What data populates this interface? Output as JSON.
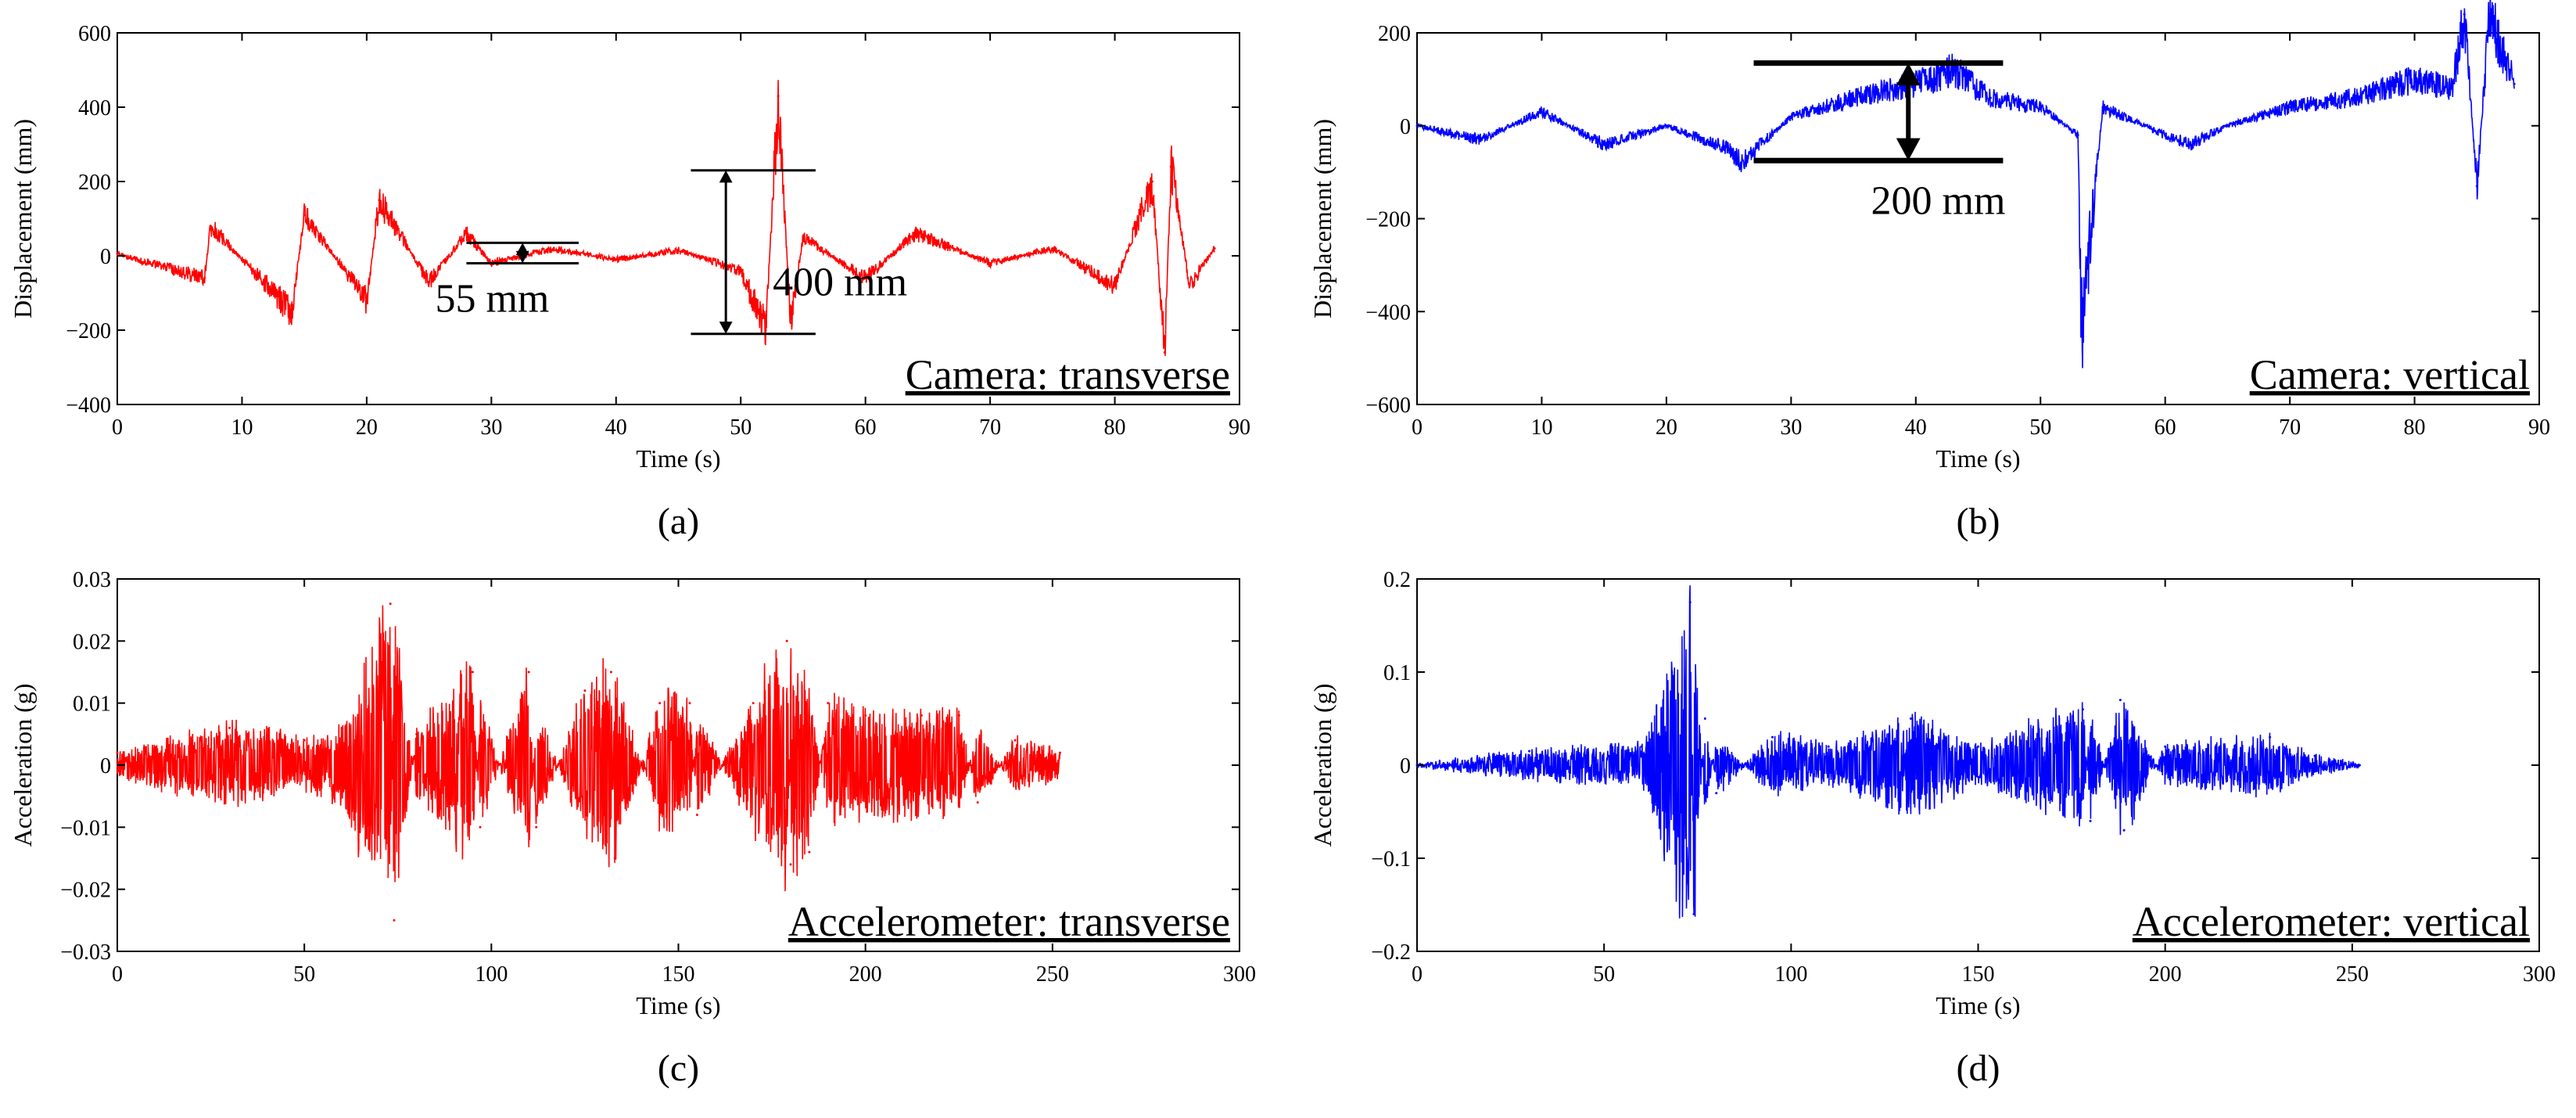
{
  "colors": {
    "red": "#ff0000",
    "blue": "#0000ff",
    "axis": "#000000"
  },
  "chart_data": [
    {
      "type": "line",
      "panel_label": "(a)",
      "title": "Camera: transverse",
      "xlabel": "Time (s)",
      "ylabel": "Displacement (mm)",
      "xlim": [
        0,
        90
      ],
      "ylim": [
        -400,
        600
      ],
      "xticks": [
        0,
        10,
        20,
        30,
        40,
        50,
        60,
        70,
        80,
        90
      ],
      "yticks": [
        -400,
        -200,
        0,
        200,
        400,
        600
      ],
      "color": "#ff0000",
      "grid": false,
      "series": [
        {
          "points": [
            [
              0,
              5
            ],
            [
              7,
              -60
            ],
            [
              7.5,
              80
            ],
            [
              14,
              -150
            ],
            [
              15,
              110
            ],
            [
              20,
              -120
            ],
            [
              21,
              150
            ],
            [
              25,
              -70
            ],
            [
              28,
              60
            ],
            [
              30,
              -20
            ],
            [
              35,
              20
            ],
            [
              40,
              -10
            ],
            [
              45,
              15
            ],
            [
              50,
              -40
            ],
            [
              52,
              -200
            ],
            [
              53,
              430
            ],
            [
              54,
              -180
            ],
            [
              55,
              50
            ],
            [
              60,
              -60
            ],
            [
              64,
              60
            ],
            [
              70,
              -20
            ],
            [
              75,
              20
            ],
            [
              80,
              -80
            ],
            [
              83,
              200
            ],
            [
              84,
              -260
            ],
            [
              84.5,
              240
            ],
            [
              86,
              -80
            ],
            [
              88,
              20
            ]
          ]
        }
      ],
      "annotations": [
        {
          "text": "55 mm",
          "span": [
            -20,
            35
          ],
          "x": [
            28,
            37
          ]
        },
        {
          "text": "400 mm",
          "span": [
            -210,
            230
          ],
          "x": [
            46,
            56
          ]
        }
      ]
    },
    {
      "type": "line",
      "panel_label": "(b)",
      "title": "Camera: vertical",
      "xlabel": "Time (s)",
      "ylabel": "Displacement (mm)",
      "xlim": [
        0,
        90
      ],
      "ylim": [
        -600,
        200
      ],
      "xticks": [
        0,
        10,
        20,
        30,
        40,
        50,
        60,
        70,
        80,
        90
      ],
      "yticks": [
        -600,
        -400,
        -200,
        0,
        200
      ],
      "color": "#0000ff",
      "grid": false,
      "series": [
        {
          "points": [
            [
              0,
              0
            ],
            [
              5,
              -30
            ],
            [
              10,
              30
            ],
            [
              15,
              -40
            ],
            [
              20,
              0
            ],
            [
              25,
              -50
            ],
            [
              26,
              -80
            ],
            [
              30,
              20
            ],
            [
              35,
              60
            ],
            [
              40,
              90
            ],
            [
              43,
              120
            ],
            [
              46,
              60
            ],
            [
              50,
              40
            ],
            [
              53,
              -20
            ],
            [
              53.3,
              -440
            ],
            [
              55,
              40
            ],
            [
              60,
              -20
            ],
            [
              62,
              -40
            ],
            [
              65,
              0
            ],
            [
              70,
              40
            ],
            [
              75,
              60
            ],
            [
              80,
              100
            ],
            [
              83,
              80
            ],
            [
              84,
              240
            ],
            [
              85,
              -130
            ],
            [
              86,
              240
            ],
            [
              88,
              90
            ]
          ]
        }
      ],
      "annotations": [
        {
          "text": "200 mm",
          "span": [
            -75,
            135
          ],
          "x": [
            27,
            47
          ]
        }
      ]
    },
    {
      "type": "line",
      "panel_label": "(c)",
      "title": "Accelerometer: transverse",
      "xlabel": "Time (s)",
      "ylabel": "Acceleration (g)",
      "xlim": [
        0,
        300
      ],
      "ylim": [
        -0.03,
        0.03
      ],
      "xticks": [
        0,
        50,
        100,
        150,
        200,
        250,
        300
      ],
      "yticks": [
        -0.03,
        -0.02,
        -0.01,
        0,
        0.01,
        0.02,
        0.03
      ],
      "color": "#ff0000",
      "grid": false,
      "series": [
        {
          "points": [
            [
              0,
              0.002
            ],
            [
              30,
              0.006
            ],
            [
              50,
              0.004
            ],
            [
              60,
              0.006
            ],
            [
              73,
              0.026
            ],
            [
              74,
              -0.025
            ],
            [
              80,
              0.005
            ],
            [
              95,
              0.015
            ],
            [
              97,
              -0.01
            ],
            [
              110,
              0.015
            ],
            [
              112,
              -0.01
            ],
            [
              125,
              0.012
            ],
            [
              132,
              0.015
            ],
            [
              133,
              -0.015
            ],
            [
              145,
              0.01
            ],
            [
              153,
              0.01
            ],
            [
              155,
              -0.008
            ],
            [
              170,
              0.01
            ],
            [
              179,
              0.02
            ],
            [
              180,
              -0.016
            ],
            [
              185,
              -0.014
            ],
            [
              190,
              0.01
            ],
            [
              200,
              0.008
            ],
            [
              215,
              0.008
            ],
            [
              225,
              0.008
            ],
            [
              230,
              -0.006
            ],
            [
              240,
              0.004
            ],
            [
              252,
              0.002
            ]
          ]
        }
      ]
    },
    {
      "type": "line",
      "panel_label": "(d)",
      "title": "Accelerometer: vertical",
      "xlabel": "Time (s)",
      "ylabel": "Acceleration (g)",
      "xlim": [
        0,
        300
      ],
      "ylim": [
        -0.2,
        0.2
      ],
      "xticks": [
        0,
        50,
        100,
        150,
        200,
        250,
        300
      ],
      "yticks": [
        -0.2,
        -0.1,
        0,
        0.1,
        0.2
      ],
      "color": "#0000ff",
      "grid": false,
      "series": [
        {
          "points": [
            [
              0,
              0
            ],
            [
              30,
              0.015
            ],
            [
              60,
              0.02
            ],
            [
              73,
              0.175
            ],
            [
              74,
              -0.16
            ],
            [
              77,
              0.05
            ],
            [
              80,
              -0.03
            ],
            [
              95,
              0.03
            ],
            [
              110,
              0.02
            ],
            [
              132,
              0.05
            ],
            [
              150,
              0.02
            ],
            [
              178,
              0.06
            ],
            [
              180,
              -0.06
            ],
            [
              188,
              0.07
            ],
            [
              189,
              -0.07
            ],
            [
              200,
              0.02
            ],
            [
              228,
              0.03
            ],
            [
              240,
              0.01
            ],
            [
              252,
              0
            ]
          ]
        }
      ]
    }
  ]
}
